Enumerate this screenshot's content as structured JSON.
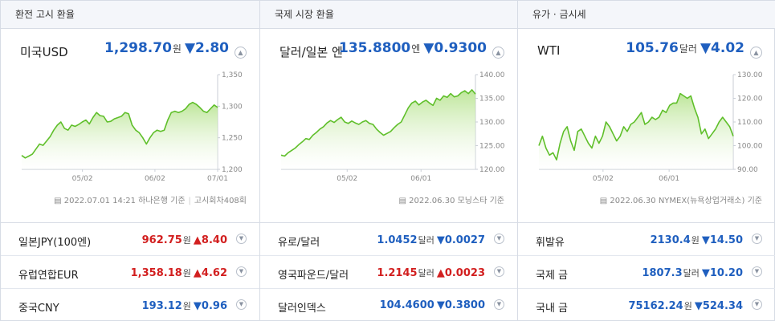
{
  "panels": [
    {
      "tab": "환전 고시 환율",
      "name": "미국USD",
      "price": "1,298.70",
      "unit": "원",
      "arrow": "▼",
      "change": "2.80",
      "dir": "down",
      "note_date": "2022.07.01 14:21 하나은행 기준",
      "note_extra": "고시회차408회",
      "chart": {
        "yticks": [
          "1,350",
          "1,300",
          "1,250",
          "1,200"
        ],
        "ymin": 1200,
        "ymax": 1350,
        "xticks": [
          "05/02",
          "06/02",
          "07/01"
        ],
        "xtick_pos": [
          0.31,
          0.68,
          1.0
        ],
        "values": [
          1222,
          1218,
          1221,
          1224,
          1232,
          1240,
          1238,
          1245,
          1252,
          1262,
          1270,
          1275,
          1265,
          1262,
          1270,
          1268,
          1271,
          1275,
          1278,
          1272,
          1282,
          1290,
          1285,
          1284,
          1275,
          1276,
          1280,
          1282,
          1284,
          1290,
          1288,
          1270,
          1262,
          1258,
          1250,
          1240,
          1250,
          1258,
          1262,
          1260,
          1262,
          1278,
          1290,
          1292,
          1290,
          1292,
          1296,
          1303,
          1306,
          1303,
          1298,
          1292,
          1290,
          1296,
          1302,
          1298
        ]
      },
      "rows": [
        {
          "name": "일본JPY(100엔)",
          "value": "962.75",
          "unit": "원",
          "arrow": "▲",
          "change": "8.40",
          "dir": "up"
        },
        {
          "name": "유럽연합EUR",
          "value": "1,358.18",
          "unit": "원",
          "arrow": "▲",
          "change": "4.62",
          "dir": "up"
        },
        {
          "name": "중국CNY",
          "value": "193.12",
          "unit": "원",
          "arrow": "▼",
          "change": "0.96",
          "dir": "down"
        }
      ]
    },
    {
      "tab": "국제 시장 환율",
      "name": "달러/일본 엔",
      "price": "135.8800",
      "unit": "엔",
      "arrow": "▼",
      "change": "0.9300",
      "dir": "down",
      "note_date": "2022.06.30 모닝스타 기준",
      "note_extra": "",
      "chart": {
        "yticks": [
          "140.00",
          "135.00",
          "130.00",
          "125.00",
          "120.00"
        ],
        "ymin": 120,
        "ymax": 140,
        "xticks": [
          "05/02",
          "06/01"
        ],
        "xtick_pos": [
          0.34,
          0.72
        ],
        "values": [
          123.0,
          122.8,
          123.5,
          124.0,
          124.5,
          125.2,
          125.8,
          126.5,
          126.3,
          127.2,
          127.8,
          128.5,
          129.0,
          129.8,
          130.3,
          129.9,
          130.5,
          131.0,
          130.0,
          129.7,
          130.2,
          129.8,
          129.5,
          130.0,
          130.3,
          129.7,
          129.5,
          128.5,
          127.8,
          127.2,
          127.6,
          128.0,
          128.8,
          129.5,
          130.0,
          131.5,
          133.0,
          134.0,
          134.4,
          133.6,
          134.2,
          134.6,
          134.0,
          133.5,
          135.0,
          134.6,
          135.5,
          135.2,
          136.0,
          135.3,
          135.5,
          136.2,
          136.6,
          136.0,
          136.8,
          135.9
        ]
      },
      "rows": [
        {
          "name": "유로/달러",
          "value": "1.0452",
          "unit": "달러",
          "arrow": "▼",
          "change": "0.0027",
          "dir": "down"
        },
        {
          "name": "영국파운드/달러",
          "value": "1.2145",
          "unit": "달러",
          "arrow": "▲",
          "change": "0.0023",
          "dir": "up"
        },
        {
          "name": "달러인덱스",
          "value": "104.4600",
          "unit": "",
          "arrow": "▼",
          "change": "0.3800",
          "dir": "down"
        }
      ]
    },
    {
      "tab": "유가 · 금시세",
      "name": "WTI",
      "price": "105.76",
      "unit": "달러",
      "arrow": "▼",
      "change": "4.02",
      "dir": "down",
      "note_date": "2022.06.30 NYMEX(뉴욕상업거래소) 기준",
      "note_extra": "",
      "chart": {
        "yticks": [
          "130.00",
          "120.00",
          "110.00",
          "100.00",
          "90.00"
        ],
        "ymin": 90,
        "ymax": 130,
        "xticks": [
          "05/02",
          "06/01"
        ],
        "xtick_pos": [
          0.33,
          0.67
        ],
        "values": [
          100,
          104,
          99,
          96,
          97,
          94,
          101,
          106,
          108,
          102,
          98,
          106,
          107,
          104,
          101,
          99,
          104,
          101,
          104,
          110,
          108,
          105,
          102,
          104,
          108,
          106,
          109,
          110,
          112,
          114,
          109,
          110,
          112,
          111,
          112,
          115,
          114,
          117,
          118,
          118,
          122,
          121,
          120,
          121,
          116,
          112,
          105,
          107,
          103,
          105,
          107,
          110,
          112,
          110,
          108,
          104
        ]
      },
      "rows": [
        {
          "name": "휘발유",
          "value": "2130.4",
          "unit": "원",
          "arrow": "▼",
          "change": "14.50",
          "dir": "down"
        },
        {
          "name": "국제 금",
          "value": "1807.3",
          "unit": "달러",
          "arrow": "▼",
          "change": "10.20",
          "dir": "down"
        },
        {
          "name": "국내 금",
          "value": "75162.24",
          "unit": "원",
          "arrow": "▼",
          "change": "524.34",
          "dir": "down"
        }
      ]
    }
  ]
}
